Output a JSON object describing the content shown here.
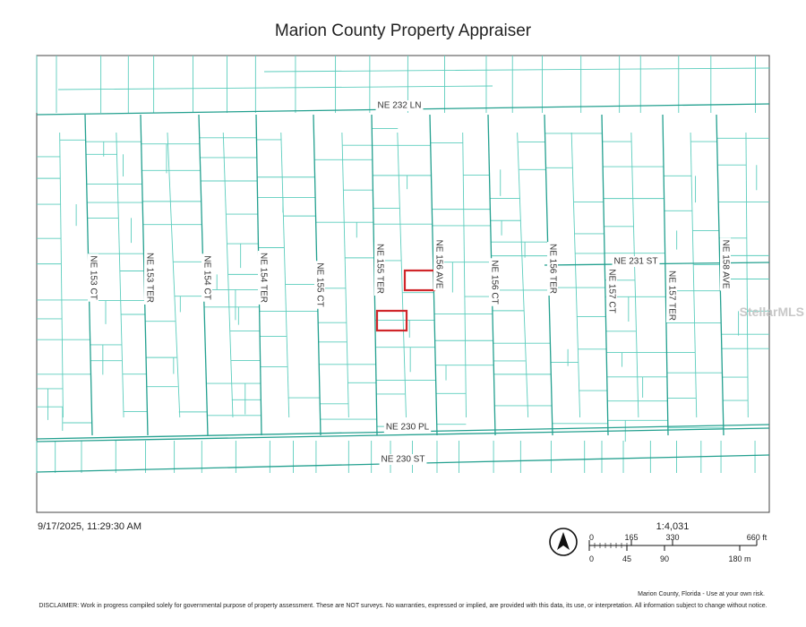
{
  "header": {
    "title": "Marion County Property Appraiser"
  },
  "map": {
    "streets": [
      "NE 232 LN",
      "NE 231 ST",
      "NE 230 PL",
      "NE 230 ST",
      "NE 153 CT",
      "NE 153 TER",
      "NE 154 CT",
      "NE 154 TER",
      "NE 155 CT",
      "NE 155 TER",
      "NE 156 AVE",
      "NE 156 CT",
      "NE 156 TER",
      "NE 157 CT",
      "NE 157 TER",
      "NE 158 AVE"
    ],
    "watermark": "StellarMLS"
  },
  "footer": {
    "timestamp": "9/17/2025, 11:29:30 AM",
    "scale_ratio": "1:4,031",
    "scale_ft": [
      "0",
      "165",
      "330",
      "660 ft"
    ],
    "scale_m": [
      "0",
      "45",
      "90",
      "180 m"
    ],
    "credit": "Marion County, Florida - Use at your own risk.",
    "disclaimer": "DISCLAIMER: Work in progress compiled solely for governmental purpose of property assessment. These are NOT surveys. No warranties, expressed or implied, are provided with this data, its use, or interpretation. All information subject to change without notice."
  }
}
